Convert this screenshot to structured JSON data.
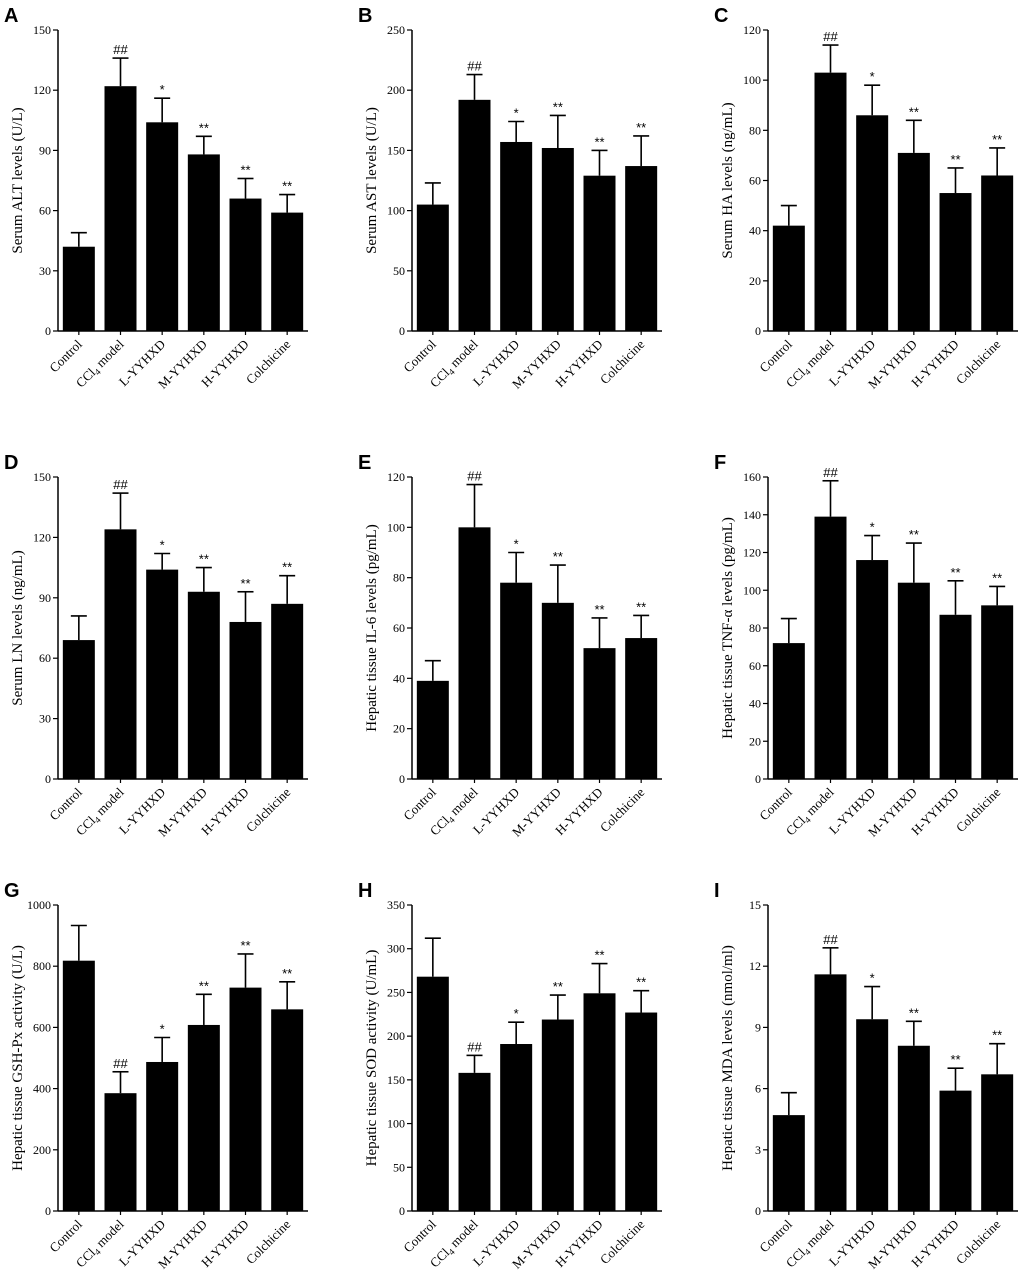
{
  "categories": [
    "Control",
    "CCl4 model",
    "L-YYHXD",
    "M-YYHXD",
    "H-YYHXD",
    "Colchicine"
  ],
  "chart_data": [
    {
      "type": "bar",
      "panel": "A",
      "ylabel": "Serum ALT levels (U/L)",
      "ylim": [
        0,
        150
      ],
      "yticks": [
        0,
        30,
        60,
        90,
        120,
        150
      ],
      "values": [
        42,
        122,
        104,
        88,
        66,
        59
      ],
      "errors": [
        7,
        14,
        12,
        9,
        10,
        9
      ],
      "sig": [
        "",
        "##",
        "*",
        "**",
        "**",
        "**"
      ]
    },
    {
      "type": "bar",
      "panel": "B",
      "ylabel": "Serum AST levels (U/L)",
      "ylim": [
        0,
        250
      ],
      "yticks": [
        0,
        50,
        100,
        150,
        200,
        250
      ],
      "values": [
        105,
        192,
        157,
        152,
        129,
        137
      ],
      "errors": [
        18,
        21,
        17,
        27,
        21,
        25
      ],
      "sig": [
        "",
        "##",
        "*",
        "**",
        "**",
        "**"
      ]
    },
    {
      "type": "bar",
      "panel": "C",
      "ylabel": "Serum HA levels (ng/mL)",
      "ylim": [
        0,
        120
      ],
      "yticks": [
        0,
        20,
        40,
        60,
        80,
        100,
        120
      ],
      "values": [
        42,
        103,
        86,
        71,
        55,
        62
      ],
      "errors": [
        8,
        11,
        12,
        13,
        10,
        11
      ],
      "sig": [
        "",
        "##",
        "*",
        "**",
        "**",
        "**"
      ]
    },
    {
      "type": "bar",
      "panel": "D",
      "ylabel": "Serum LN levels (ng/mL)",
      "ylim": [
        0,
        150
      ],
      "yticks": [
        0,
        30,
        60,
        90,
        120,
        150
      ],
      "values": [
        69,
        124,
        104,
        93,
        78,
        87
      ],
      "errors": [
        12,
        18,
        8,
        12,
        15,
        14
      ],
      "sig": [
        "",
        "##",
        "*",
        "**",
        "**",
        "**"
      ]
    },
    {
      "type": "bar",
      "panel": "E",
      "ylabel": "Hepatic tissue IL-6 levels (pg/mL)",
      "ylim": [
        0,
        120
      ],
      "yticks": [
        0,
        20,
        40,
        60,
        80,
        100,
        120
      ],
      "values": [
        39,
        100,
        78,
        70,
        52,
        56
      ],
      "errors": [
        8,
        17,
        12,
        15,
        12,
        9
      ],
      "sig": [
        "",
        "##",
        "*",
        "**",
        "**",
        "**"
      ]
    },
    {
      "type": "bar",
      "panel": "F",
      "ylabel": "Hepatic tissue TNF-α levels (pg/mL)",
      "ylim": [
        0,
        160
      ],
      "yticks": [
        0,
        20,
        40,
        60,
        80,
        100,
        120,
        140,
        160
      ],
      "values": [
        72,
        139,
        116,
        104,
        87,
        92
      ],
      "errors": [
        13,
        19,
        13,
        21,
        18,
        10
      ],
      "sig": [
        "",
        "##",
        "*",
        "**",
        "**",
        "**"
      ]
    },
    {
      "type": "bar",
      "panel": "G",
      "ylabel": "Hepatic tissue GSH-Px activity (U/L)",
      "ylim": [
        0,
        1000
      ],
      "yticks": [
        0,
        200,
        400,
        600,
        800,
        1000
      ],
      "values": [
        818,
        385,
        487,
        608,
        730,
        659
      ],
      "errors": [
        115,
        70,
        80,
        100,
        110,
        90
      ],
      "sig": [
        "",
        "##",
        "*",
        "**",
        "**",
        "**"
      ]
    },
    {
      "type": "bar",
      "panel": "H",
      "ylabel": "Hepatic tissue SOD activity (U/mL)",
      "ylim": [
        0,
        350
      ],
      "yticks": [
        0,
        50,
        100,
        150,
        200,
        250,
        300,
        350
      ],
      "values": [
        268,
        158,
        191,
        219,
        249,
        227
      ],
      "errors": [
        44,
        20,
        25,
        28,
        34,
        25
      ],
      "sig": [
        "",
        "##",
        "*",
        "**",
        "**",
        "**"
      ]
    },
    {
      "type": "bar",
      "panel": "I",
      "ylabel": "Hepatic tissue MDA levels (nmol/ml)",
      "ylim": [
        0,
        15
      ],
      "yticks": [
        0,
        3,
        6,
        9,
        12,
        15
      ],
      "values": [
        4.7,
        11.6,
        9.4,
        8.1,
        5.9,
        6.7
      ],
      "errors": [
        1.1,
        1.3,
        1.6,
        1.2,
        1.1,
        1.5
      ],
      "sig": [
        "",
        "##",
        "*",
        "**",
        "**",
        "**"
      ]
    }
  ]
}
